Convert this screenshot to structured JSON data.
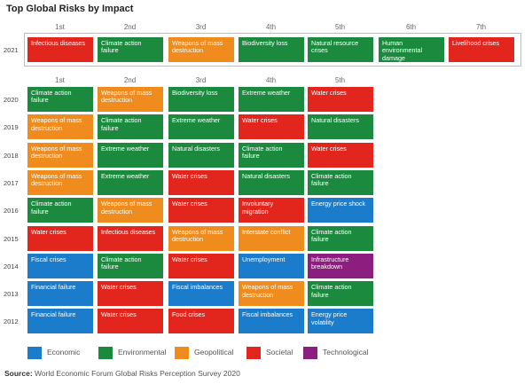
{
  "title": "Top Global Risks by Impact",
  "colors": {
    "Economic": "#1a7ccb",
    "Environmental": "#1b8a3e",
    "Geopolitical": "#f08c1e",
    "Societal": "#e3261d",
    "Technological": "#8b1e7e"
  },
  "chart_data": {
    "type": "table",
    "title": "Top Global Risks by Impact",
    "rank_headers_2021": [
      "1st",
      "2nd",
      "3rd",
      "4th",
      "5th",
      "6th",
      "7th"
    ],
    "rank_headers": [
      "1st",
      "2nd",
      "3rd",
      "4th",
      "5th"
    ],
    "rows": [
      {
        "year": "2021",
        "cells": [
          {
            "text": "Infectious diseases",
            "category": "Societal"
          },
          {
            "text": "Climate action failure",
            "category": "Environmental"
          },
          {
            "text": "Weapons of mass destruction",
            "category": "Geopolitical"
          },
          {
            "text": "Biodiversity loss",
            "category": "Environmental"
          },
          {
            "text": "Natural resource crises",
            "category": "Environmental"
          },
          {
            "text": "Human environmental damage",
            "category": "Environmental"
          },
          {
            "text": "Livelihood crises",
            "category": "Societal"
          }
        ]
      },
      {
        "year": "2020",
        "cells": [
          {
            "text": "Climate action failure",
            "category": "Environmental"
          },
          {
            "text": "Weapons of mass destruction",
            "category": "Geopolitical"
          },
          {
            "text": "Biodiversity loss",
            "category": "Environmental"
          },
          {
            "text": "Extreme weather",
            "category": "Environmental"
          },
          {
            "text": "Water crises",
            "category": "Societal"
          }
        ]
      },
      {
        "year": "2019",
        "cells": [
          {
            "text": "Weapons of mass destruction",
            "category": "Geopolitical"
          },
          {
            "text": "Climate action failure",
            "category": "Environmental"
          },
          {
            "text": "Extreme weather",
            "category": "Environmental"
          },
          {
            "text": "Water crises",
            "category": "Societal"
          },
          {
            "text": "Natural disasters",
            "category": "Environmental"
          }
        ]
      },
      {
        "year": "2018",
        "cells": [
          {
            "text": "Weapons of mass destruction",
            "category": "Geopolitical"
          },
          {
            "text": "Extreme weather",
            "category": "Environmental"
          },
          {
            "text": "Natural disasters",
            "category": "Environmental"
          },
          {
            "text": "Climate action failure",
            "category": "Environmental"
          },
          {
            "text": "Water crises",
            "category": "Societal"
          }
        ]
      },
      {
        "year": "2017",
        "cells": [
          {
            "text": "Weapons of mass destruction",
            "category": "Geopolitical"
          },
          {
            "text": "Extreme weather",
            "category": "Environmental"
          },
          {
            "text": "Water crises",
            "category": "Societal"
          },
          {
            "text": "Natural disasters",
            "category": "Environmental"
          },
          {
            "text": "Climate action failure",
            "category": "Environmental"
          }
        ]
      },
      {
        "year": "2016",
        "cells": [
          {
            "text": "Climate action failure",
            "category": "Environmental"
          },
          {
            "text": "Weapons of mass destruction",
            "category": "Geopolitical"
          },
          {
            "text": "Water crises",
            "category": "Societal"
          },
          {
            "text": "Involuntary migration",
            "category": "Societal"
          },
          {
            "text": "Energy price shock",
            "category": "Economic"
          }
        ]
      },
      {
        "year": "2015",
        "cells": [
          {
            "text": "Water crises",
            "category": "Societal"
          },
          {
            "text": "Infectious diseases",
            "category": "Societal"
          },
          {
            "text": "Weapons of mass destruction",
            "category": "Geopolitical"
          },
          {
            "text": "Interstate conflict",
            "category": "Geopolitical"
          },
          {
            "text": "Climate action failure",
            "category": "Environmental"
          }
        ]
      },
      {
        "year": "2014",
        "cells": [
          {
            "text": "Fiscal crises",
            "category": "Economic"
          },
          {
            "text": "Climate action failure",
            "category": "Environmental"
          },
          {
            "text": "Water crises",
            "category": "Societal"
          },
          {
            "text": "Unemployment",
            "category": "Economic"
          },
          {
            "text": "Infrastructure breakdown",
            "category": "Technological"
          }
        ]
      },
      {
        "year": "2013",
        "cells": [
          {
            "text": "Financial failure",
            "category": "Economic"
          },
          {
            "text": "Water crises",
            "category": "Societal"
          },
          {
            "text": "Fiscal imbalances",
            "category": "Economic"
          },
          {
            "text": "Weapons of mass destruction",
            "category": "Geopolitical"
          },
          {
            "text": "Climate action failure",
            "category": "Environmental"
          }
        ]
      },
      {
        "year": "2012",
        "cells": [
          {
            "text": "Financial failure",
            "category": "Economic"
          },
          {
            "text": "Water crises",
            "category": "Societal"
          },
          {
            "text": "Food crises",
            "category": "Societal"
          },
          {
            "text": "Fiscal imbalances",
            "category": "Economic"
          },
          {
            "text": "Energy price volatility",
            "category": "Economic"
          }
        ]
      }
    ],
    "legend": [
      "Economic",
      "Environmental",
      "Geopolitical",
      "Societal",
      "Technological"
    ]
  },
  "source": {
    "label": "Source:",
    "text": "World Economic Forum Global Risks Perception Survey 2020"
  }
}
